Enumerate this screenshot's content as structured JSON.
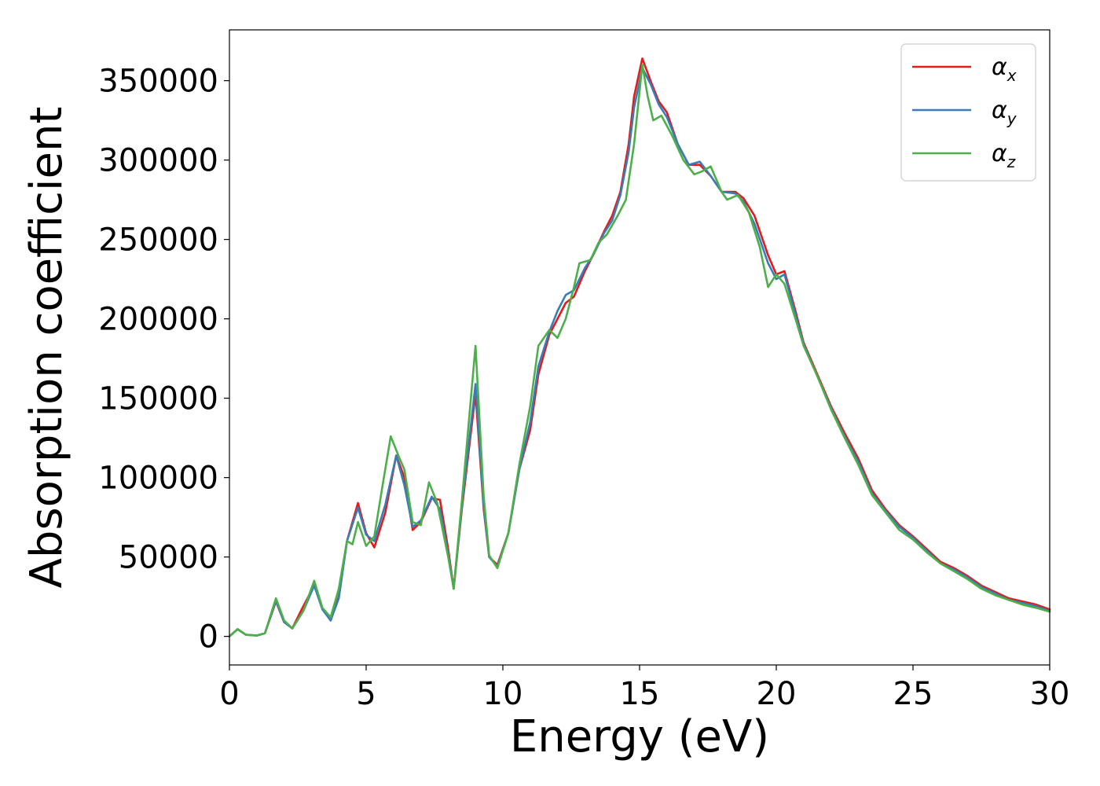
{
  "chart_data": {
    "type": "line",
    "xlabel": "Energy (eV)",
    "ylabel": "Absorption coefficient",
    "xlim": [
      0,
      30
    ],
    "ylim": [
      -18000,
      382000
    ],
    "xticks": [
      0,
      5,
      10,
      15,
      20,
      25,
      30
    ],
    "yticks": [
      0,
      50000,
      100000,
      150000,
      200000,
      250000,
      300000,
      350000
    ],
    "grid": false,
    "legend_position": "upper right",
    "series": [
      {
        "name": "α_x",
        "symbol": "α",
        "subscript": "x",
        "color": "#e41a1c",
        "points": [
          [
            0,
            0
          ],
          [
            0.3,
            4500
          ],
          [
            0.6,
            1000
          ],
          [
            1.0,
            500
          ],
          [
            1.3,
            2000
          ],
          [
            1.7,
            22000
          ],
          [
            2.0,
            9000
          ],
          [
            2.3,
            5000
          ],
          [
            2.7,
            19000
          ],
          [
            3.1,
            32000
          ],
          [
            3.4,
            18000
          ],
          [
            3.7,
            10000
          ],
          [
            4.0,
            25000
          ],
          [
            4.3,
            60000
          ],
          [
            4.7,
            84000
          ],
          [
            5.0,
            65000
          ],
          [
            5.3,
            56000
          ],
          [
            5.7,
            78000
          ],
          [
            6.1,
            114000
          ],
          [
            6.4,
            100000
          ],
          [
            6.7,
            67000
          ],
          [
            7.0,
            72000
          ],
          [
            7.4,
            87000
          ],
          [
            7.7,
            86000
          ],
          [
            8.0,
            55000
          ],
          [
            8.2,
            30000
          ],
          [
            8.5,
            80000
          ],
          [
            9.0,
            153000
          ],
          [
            9.3,
            80000
          ],
          [
            9.5,
            50000
          ],
          [
            9.8,
            45000
          ],
          [
            10.2,
            65000
          ],
          [
            10.6,
            105000
          ],
          [
            11.0,
            130000
          ],
          [
            11.3,
            165000
          ],
          [
            11.7,
            190000
          ],
          [
            12.0,
            200000
          ],
          [
            12.3,
            210000
          ],
          [
            12.6,
            214000
          ],
          [
            13.0,
            230000
          ],
          [
            13.3,
            240000
          ],
          [
            13.7,
            255000
          ],
          [
            14.0,
            265000
          ],
          [
            14.3,
            280000
          ],
          [
            14.6,
            310000
          ],
          [
            14.8,
            340000
          ],
          [
            15.1,
            364000
          ],
          [
            15.4,
            350000
          ],
          [
            15.7,
            337000
          ],
          [
            16.0,
            330000
          ],
          [
            16.4,
            310000
          ],
          [
            16.8,
            297000
          ],
          [
            17.2,
            297000
          ],
          [
            17.6,
            290000
          ],
          [
            18.0,
            280000
          ],
          [
            18.5,
            280000
          ],
          [
            18.8,
            276000
          ],
          [
            19.2,
            265000
          ],
          [
            19.7,
            240000
          ],
          [
            20.0,
            228000
          ],
          [
            20.3,
            230000
          ],
          [
            20.7,
            205000
          ],
          [
            21.0,
            185000
          ],
          [
            21.5,
            165000
          ],
          [
            22.0,
            145000
          ],
          [
            22.5,
            128000
          ],
          [
            23.0,
            112000
          ],
          [
            23.5,
            92000
          ],
          [
            24.0,
            80000
          ],
          [
            24.5,
            70000
          ],
          [
            25.0,
            63000
          ],
          [
            25.5,
            55000
          ],
          [
            26.0,
            47000
          ],
          [
            26.5,
            43000
          ],
          [
            27.0,
            38000
          ],
          [
            27.5,
            32000
          ],
          [
            28.0,
            28000
          ],
          [
            28.5,
            24000
          ],
          [
            29.0,
            22000
          ],
          [
            29.5,
            20000
          ],
          [
            30.0,
            17000
          ]
        ]
      },
      {
        "name": "α_y",
        "symbol": "α",
        "subscript": "y",
        "color": "#377eb8",
        "points": [
          [
            0,
            0
          ],
          [
            0.3,
            4500
          ],
          [
            0.6,
            1000
          ],
          [
            1.0,
            500
          ],
          [
            1.3,
            2000
          ],
          [
            1.7,
            22500
          ],
          [
            2.0,
            9000
          ],
          [
            2.3,
            5000
          ],
          [
            2.7,
            16000
          ],
          [
            3.1,
            32000
          ],
          [
            3.4,
            17000
          ],
          [
            3.7,
            10000
          ],
          [
            4.0,
            24000
          ],
          [
            4.3,
            60000
          ],
          [
            4.7,
            81000
          ],
          [
            5.0,
            64000
          ],
          [
            5.3,
            60000
          ],
          [
            5.7,
            83000
          ],
          [
            6.1,
            114000
          ],
          [
            6.4,
            95000
          ],
          [
            6.7,
            69000
          ],
          [
            7.0,
            73000
          ],
          [
            7.4,
            88000
          ],
          [
            7.7,
            80000
          ],
          [
            8.0,
            52000
          ],
          [
            8.2,
            30000
          ],
          [
            8.5,
            82000
          ],
          [
            9.0,
            159000
          ],
          [
            9.3,
            82000
          ],
          [
            9.5,
            50000
          ],
          [
            9.8,
            44000
          ],
          [
            10.2,
            65000
          ],
          [
            10.6,
            105000
          ],
          [
            11.0,
            135000
          ],
          [
            11.3,
            170000
          ],
          [
            11.7,
            192000
          ],
          [
            12.0,
            205000
          ],
          [
            12.3,
            215000
          ],
          [
            12.6,
            218000
          ],
          [
            13.0,
            232000
          ],
          [
            13.3,
            240000
          ],
          [
            13.7,
            254000
          ],
          [
            14.0,
            262000
          ],
          [
            14.3,
            278000
          ],
          [
            14.6,
            305000
          ],
          [
            14.8,
            333000
          ],
          [
            15.1,
            358000
          ],
          [
            15.4,
            348000
          ],
          [
            15.7,
            335000
          ],
          [
            16.0,
            327000
          ],
          [
            16.4,
            310000
          ],
          [
            16.8,
            297000
          ],
          [
            17.2,
            299000
          ],
          [
            17.6,
            290000
          ],
          [
            18.0,
            280000
          ],
          [
            18.5,
            279000
          ],
          [
            18.8,
            274000
          ],
          [
            19.2,
            260000
          ],
          [
            19.7,
            235000
          ],
          [
            20.0,
            225000
          ],
          [
            20.3,
            228000
          ],
          [
            20.7,
            203000
          ],
          [
            21.0,
            184000
          ],
          [
            21.5,
            164000
          ],
          [
            22.0,
            144000
          ],
          [
            22.5,
            126000
          ],
          [
            23.0,
            110000
          ],
          [
            23.5,
            90000
          ],
          [
            24.0,
            79000
          ],
          [
            24.5,
            69000
          ],
          [
            25.0,
            62000
          ],
          [
            25.5,
            54000
          ],
          [
            26.0,
            46000
          ],
          [
            26.5,
            42000
          ],
          [
            27.0,
            37000
          ],
          [
            27.5,
            31000
          ],
          [
            28.0,
            27000
          ],
          [
            28.5,
            23000
          ],
          [
            29.0,
            21000
          ],
          [
            29.5,
            19000
          ],
          [
            30.0,
            16000
          ]
        ]
      },
      {
        "name": "α_z",
        "symbol": "α",
        "subscript": "z",
        "color": "#4daf4a",
        "points": [
          [
            0,
            0
          ],
          [
            0.3,
            4500
          ],
          [
            0.6,
            1000
          ],
          [
            1.0,
            500
          ],
          [
            1.3,
            2000
          ],
          [
            1.7,
            24000
          ],
          [
            2.0,
            10000
          ],
          [
            2.3,
            5000
          ],
          [
            2.7,
            16000
          ],
          [
            3.1,
            35000
          ],
          [
            3.4,
            18000
          ],
          [
            3.7,
            12000
          ],
          [
            4.0,
            30000
          ],
          [
            4.3,
            60000
          ],
          [
            4.5,
            58000
          ],
          [
            4.7,
            72000
          ],
          [
            5.0,
            57000
          ],
          [
            5.3,
            63000
          ],
          [
            5.6,
            95000
          ],
          [
            5.9,
            126000
          ],
          [
            6.2,
            113000
          ],
          [
            6.4,
            105000
          ],
          [
            6.7,
            72000
          ],
          [
            7.0,
            70000
          ],
          [
            7.3,
            97000
          ],
          [
            7.6,
            84000
          ],
          [
            8.0,
            50000
          ],
          [
            8.2,
            30000
          ],
          [
            8.5,
            85000
          ],
          [
            9.0,
            183000
          ],
          [
            9.3,
            88000
          ],
          [
            9.5,
            51000
          ],
          [
            9.8,
            43000
          ],
          [
            10.2,
            65000
          ],
          [
            10.6,
            108000
          ],
          [
            11.0,
            145000
          ],
          [
            11.3,
            183000
          ],
          [
            11.7,
            193000
          ],
          [
            12.0,
            188000
          ],
          [
            12.3,
            200000
          ],
          [
            12.6,
            220000
          ],
          [
            12.8,
            235000
          ],
          [
            13.2,
            237000
          ],
          [
            13.5,
            248000
          ],
          [
            13.8,
            253000
          ],
          [
            14.2,
            265000
          ],
          [
            14.5,
            275000
          ],
          [
            14.8,
            310000
          ],
          [
            15.1,
            360000
          ],
          [
            15.3,
            340000
          ],
          [
            15.5,
            325000
          ],
          [
            15.8,
            328000
          ],
          [
            16.2,
            315000
          ],
          [
            16.6,
            300000
          ],
          [
            17.0,
            291000
          ],
          [
            17.3,
            293000
          ],
          [
            17.6,
            296000
          ],
          [
            18.0,
            280000
          ],
          [
            18.2,
            275000
          ],
          [
            18.6,
            278000
          ],
          [
            19.0,
            267000
          ],
          [
            19.4,
            245000
          ],
          [
            19.7,
            220000
          ],
          [
            20.0,
            228000
          ],
          [
            20.3,
            222000
          ],
          [
            20.7,
            200000
          ],
          [
            21.0,
            183000
          ],
          [
            21.5,
            164000
          ],
          [
            22.0,
            143000
          ],
          [
            22.5,
            125000
          ],
          [
            23.0,
            108000
          ],
          [
            23.5,
            89000
          ],
          [
            24.0,
            78000
          ],
          [
            24.5,
            67000
          ],
          [
            25.0,
            61000
          ],
          [
            25.5,
            53000
          ],
          [
            26.0,
            46000
          ],
          [
            26.5,
            41000
          ],
          [
            27.0,
            36000
          ],
          [
            27.5,
            30000
          ],
          [
            28.0,
            26000
          ],
          [
            28.5,
            23000
          ],
          [
            29.0,
            20000
          ],
          [
            29.5,
            18000
          ],
          [
            30.0,
            15500
          ]
        ]
      }
    ]
  }
}
